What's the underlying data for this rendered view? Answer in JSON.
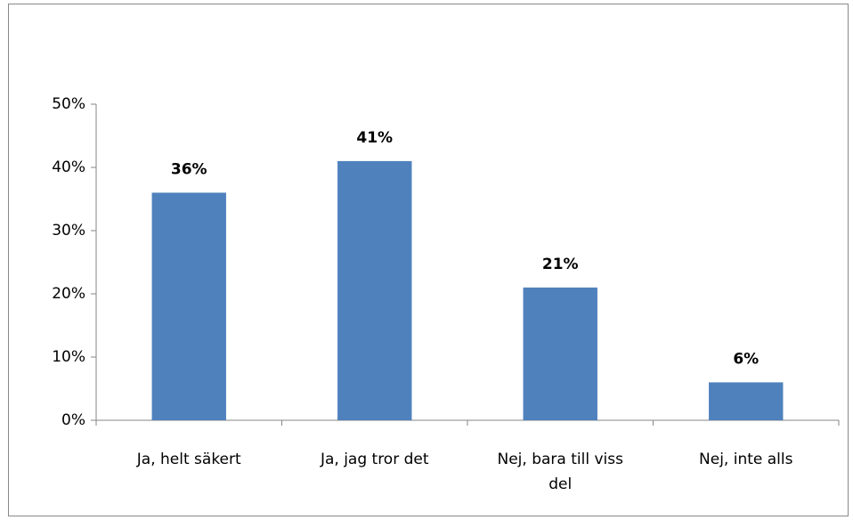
{
  "chart_data": {
    "type": "bar",
    "categories": [
      "Ja, helt säkert",
      "Ja, jag tror det",
      "Nej, bara till viss del",
      "Nej, inte alls"
    ],
    "values": [
      36,
      41,
      21,
      6
    ],
    "value_labels": [
      "36%",
      "41%",
      "21%",
      "6%"
    ],
    "color": "#4f81bd",
    "ylim": [
      0,
      50
    ],
    "yticks": [
      {
        "value": 0,
        "label": "0%"
      },
      {
        "value": 10,
        "label": "10%"
      },
      {
        "value": 20,
        "label": "20%"
      },
      {
        "value": 30,
        "label": "30%"
      },
      {
        "value": 40,
        "label": "40%"
      },
      {
        "value": 50,
        "label": "50%"
      }
    ],
    "grid": false
  }
}
